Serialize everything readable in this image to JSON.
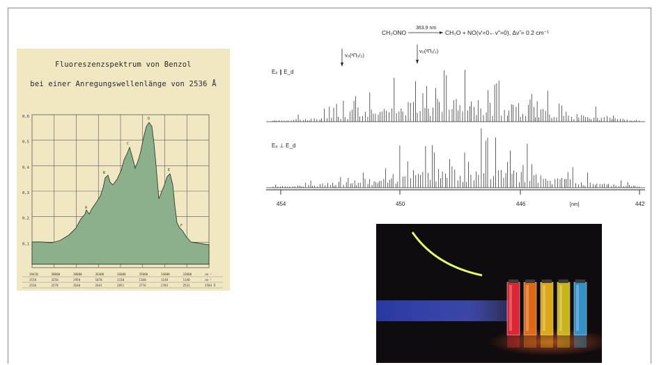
{
  "left_figure": {
    "title_line1": "Fluoreszenzspektrum von Benzol",
    "title_line2": "bei einer Anregungswellenlänge von 2536 Å",
    "fill_color": "#8db08c",
    "grid_color": "#555555",
    "y_ticks": [
      "0,6",
      "0,5",
      "0,4",
      "0,3",
      "0,2",
      "0,1"
    ],
    "peak_labels": [
      "A",
      "B",
      "C",
      "D",
      "E",
      "F"
    ],
    "bottom_rows": {
      "row1": [
        "39420",
        "38800",
        "38000",
        "36400",
        "36000",
        "35000",
        "34000",
        "33000",
        "cm⁻¹"
      ],
      "row2": [
        "3150",
        "3250",
        "2950",
        "1070",
        "1330",
        "1160",
        "1140",
        "1340",
        "cm⁻¹"
      ],
      "row3": [
        "2536",
        "2578",
        "2630",
        "2641",
        "2651",
        "2776",
        "2783",
        "2531",
        "2584 Å"
      ]
    }
  },
  "spectra": {
    "reaction_left": "CH₃ONO",
    "reaction_arrow_label": "363.9 nm",
    "reaction_right": "CH₃O + NO(v'=0←v''=0),  Δν̃ = 0.2 cm⁻¹",
    "marker1_label": "v₀(²Π₃/₂)",
    "marker2_label": "v₀(²Π₁/₂)",
    "trace1_label": "Eₚ ∥ E_d",
    "trace2_label": "Eₚ ⊥ E_d",
    "axis_ticks": [
      "454",
      "450",
      "446",
      "442"
    ],
    "axis_unit": "[nm]"
  },
  "photo": {
    "cuvette_colors": [
      "#ff2a3a",
      "#ff7a1a",
      "#ffc21a",
      "#e8d21a",
      "#3aa8e8"
    ]
  }
}
